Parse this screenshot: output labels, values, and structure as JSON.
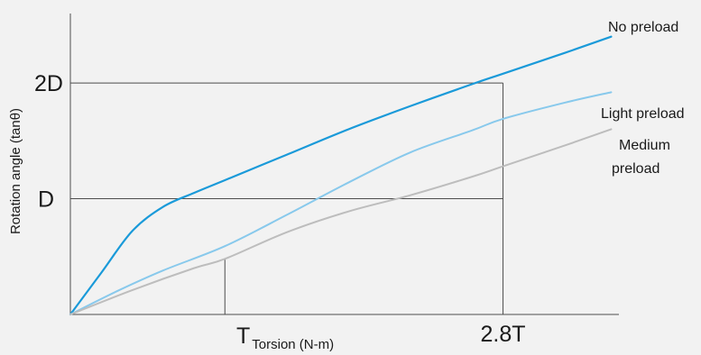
{
  "chart_data": {
    "type": "line",
    "title": "",
    "ylabel": "Rotation angle (tanθ)",
    "x_ticks": [
      {
        "value": 1.0,
        "label": "T",
        "sublabel": "Torsion (N-m)"
      },
      {
        "value": 2.8,
        "label": "2.8T",
        "sublabel": ""
      }
    ],
    "y_ticks": [
      {
        "value": 1.0,
        "label": "D"
      },
      {
        "value": 2.0,
        "label": "2D"
      }
    ],
    "xlim": [
      0,
      3.55
    ],
    "ylim": [
      0,
      2.6
    ],
    "grid": false,
    "reference_lines": [
      {
        "axis": "y",
        "value": 1.0,
        "x_to": 2.8
      },
      {
        "axis": "y",
        "value": 2.0,
        "x_to": 2.8
      },
      {
        "axis": "x",
        "value": 2.8,
        "y_to": 2.0
      },
      {
        "axis": "x",
        "value": 1.0,
        "series_index": 2
      }
    ],
    "series": [
      {
        "name": "No preload",
        "color": "#1a9ad9",
        "x": [
          0,
          0.2,
          0.4,
          0.6,
          0.8,
          1.0,
          1.4,
          1.8,
          2.2,
          2.6,
          2.8,
          3.2,
          3.5
        ],
        "y": [
          0,
          0.36,
          0.72,
          0.93,
          1.05,
          1.16,
          1.38,
          1.6,
          1.8,
          1.99,
          2.08,
          2.26,
          2.4
        ]
      },
      {
        "name": "Light preload",
        "color": "#88c9ec",
        "x": [
          0,
          0.3,
          0.6,
          1.0,
          1.4,
          1.8,
          2.2,
          2.6,
          2.8,
          3.2,
          3.5
        ],
        "y": [
          0,
          0.2,
          0.38,
          0.59,
          0.86,
          1.14,
          1.4,
          1.59,
          1.69,
          1.83,
          1.92
        ]
      },
      {
        "name": "Medium preload",
        "color": "#bdbdbd",
        "x": [
          0,
          0.4,
          0.8,
          1.0,
          1.4,
          1.8,
          2.2,
          2.6,
          2.8,
          3.2,
          3.5
        ],
        "y": [
          0,
          0.21,
          0.4,
          0.48,
          0.71,
          0.89,
          1.03,
          1.19,
          1.28,
          1.46,
          1.6
        ]
      }
    ],
    "legend_placement": "inline-right"
  },
  "legend": {
    "no_preload": "No preload",
    "light_preload": "Light preload",
    "medium_preload_line1": "Medium",
    "medium_preload_line2": "preload"
  }
}
